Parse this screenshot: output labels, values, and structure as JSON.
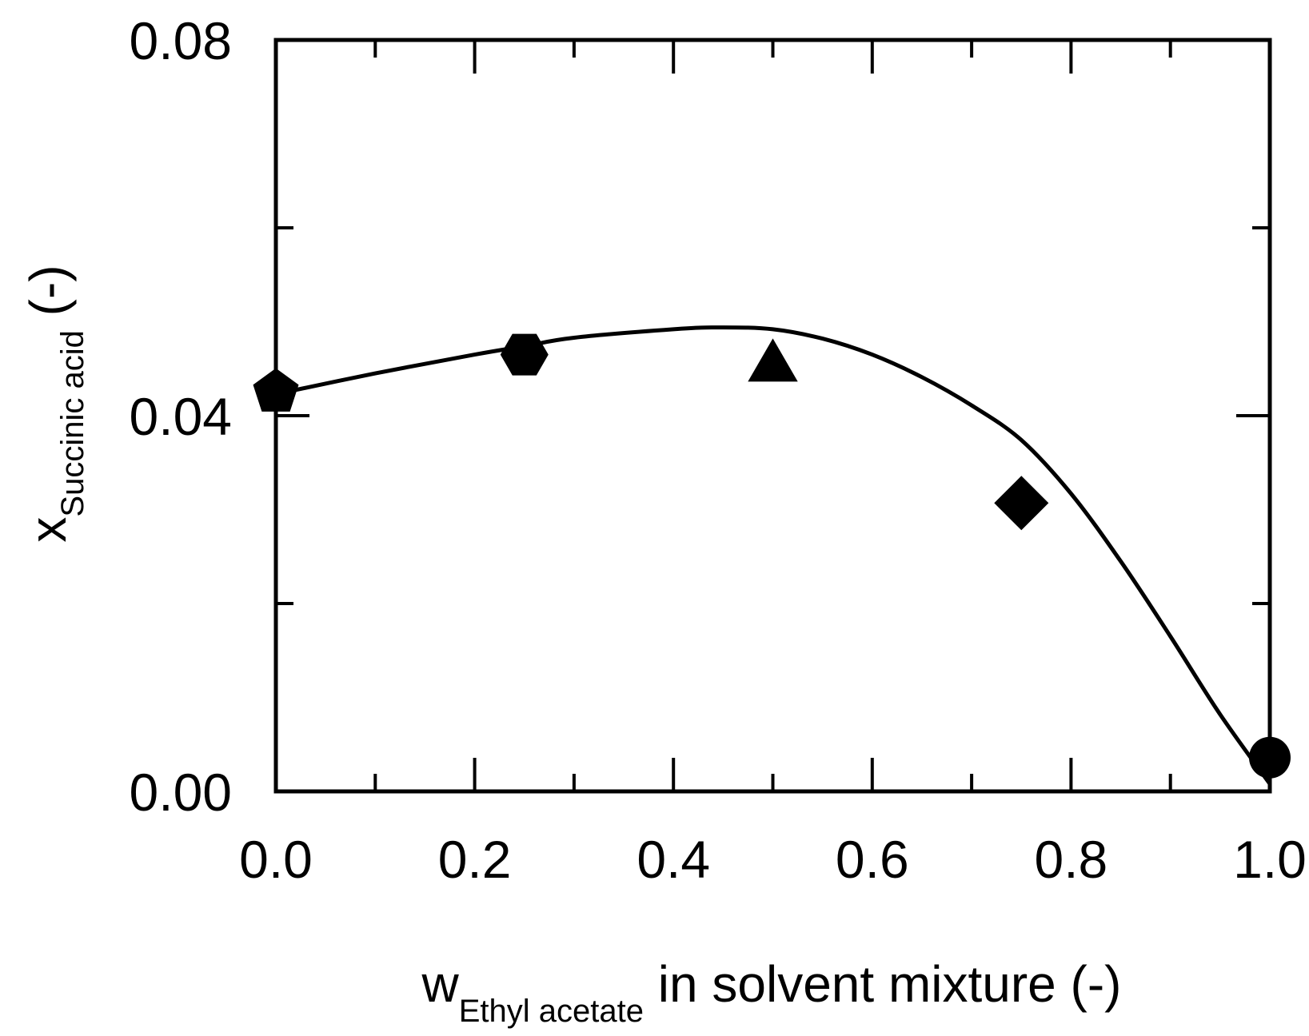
{
  "chart_data": {
    "type": "scatter",
    "xlabel": {
      "main": "w",
      "subscript": "Ethyl acetate",
      "suffix": " in solvent mixture (-)"
    },
    "ylabel": {
      "main": "x",
      "subscript": "Succinic acid",
      "suffix": " (-)"
    },
    "xlim": [
      0.0,
      1.0
    ],
    "ylim": [
      0.0,
      0.08
    ],
    "x_ticks": [
      {
        "value": 0.0,
        "label": "0.0"
      },
      {
        "value": 0.2,
        "label": "0.2"
      },
      {
        "value": 0.4,
        "label": "0.4"
      },
      {
        "value": 0.6,
        "label": "0.6"
      },
      {
        "value": 0.8,
        "label": "0.8"
      },
      {
        "value": 1.0,
        "label": "1.0"
      }
    ],
    "x_minor_ticks": [
      0.1,
      0.3,
      0.5,
      0.7,
      0.9
    ],
    "y_ticks": [
      {
        "value": 0.0,
        "label": "0.00"
      },
      {
        "value": 0.04,
        "label": "0.04"
      },
      {
        "value": 0.08,
        "label": "0.08"
      }
    ],
    "y_minor_ticks": [
      0.02,
      0.06
    ],
    "grid": false,
    "series": [
      {
        "marker": "pentagon",
        "color": "#000000",
        "x": [
          0.0
        ],
        "y": [
          0.0425
        ]
      },
      {
        "marker": "hexagon",
        "color": "#000000",
        "x": [
          0.25
        ],
        "y": [
          0.0465
        ]
      },
      {
        "marker": "triangle",
        "color": "#000000",
        "x": [
          0.5
        ],
        "y": [
          0.0455
        ]
      },
      {
        "marker": "diamond",
        "color": "#000000",
        "x": [
          0.75
        ],
        "y": [
          0.0307
        ]
      },
      {
        "marker": "circle",
        "color": "#000000",
        "x": [
          1.0
        ],
        "y": [
          0.0036
        ]
      }
    ],
    "fit_curve": {
      "type": "line",
      "color": "#000000",
      "x": [
        0.0,
        0.1,
        0.2,
        0.25,
        0.3,
        0.4,
        0.45,
        0.5,
        0.55,
        0.6,
        0.65,
        0.7,
        0.75,
        0.8,
        0.85,
        0.9,
        0.95,
        1.0
      ],
      "y": [
        0.0423,
        0.0445,
        0.0465,
        0.0474,
        0.0483,
        0.0492,
        0.0494,
        0.0492,
        0.0482,
        0.0465,
        0.0441,
        0.0411,
        0.0374,
        0.0317,
        0.0245,
        0.0165,
        0.0082,
        0.0008
      ]
    }
  }
}
